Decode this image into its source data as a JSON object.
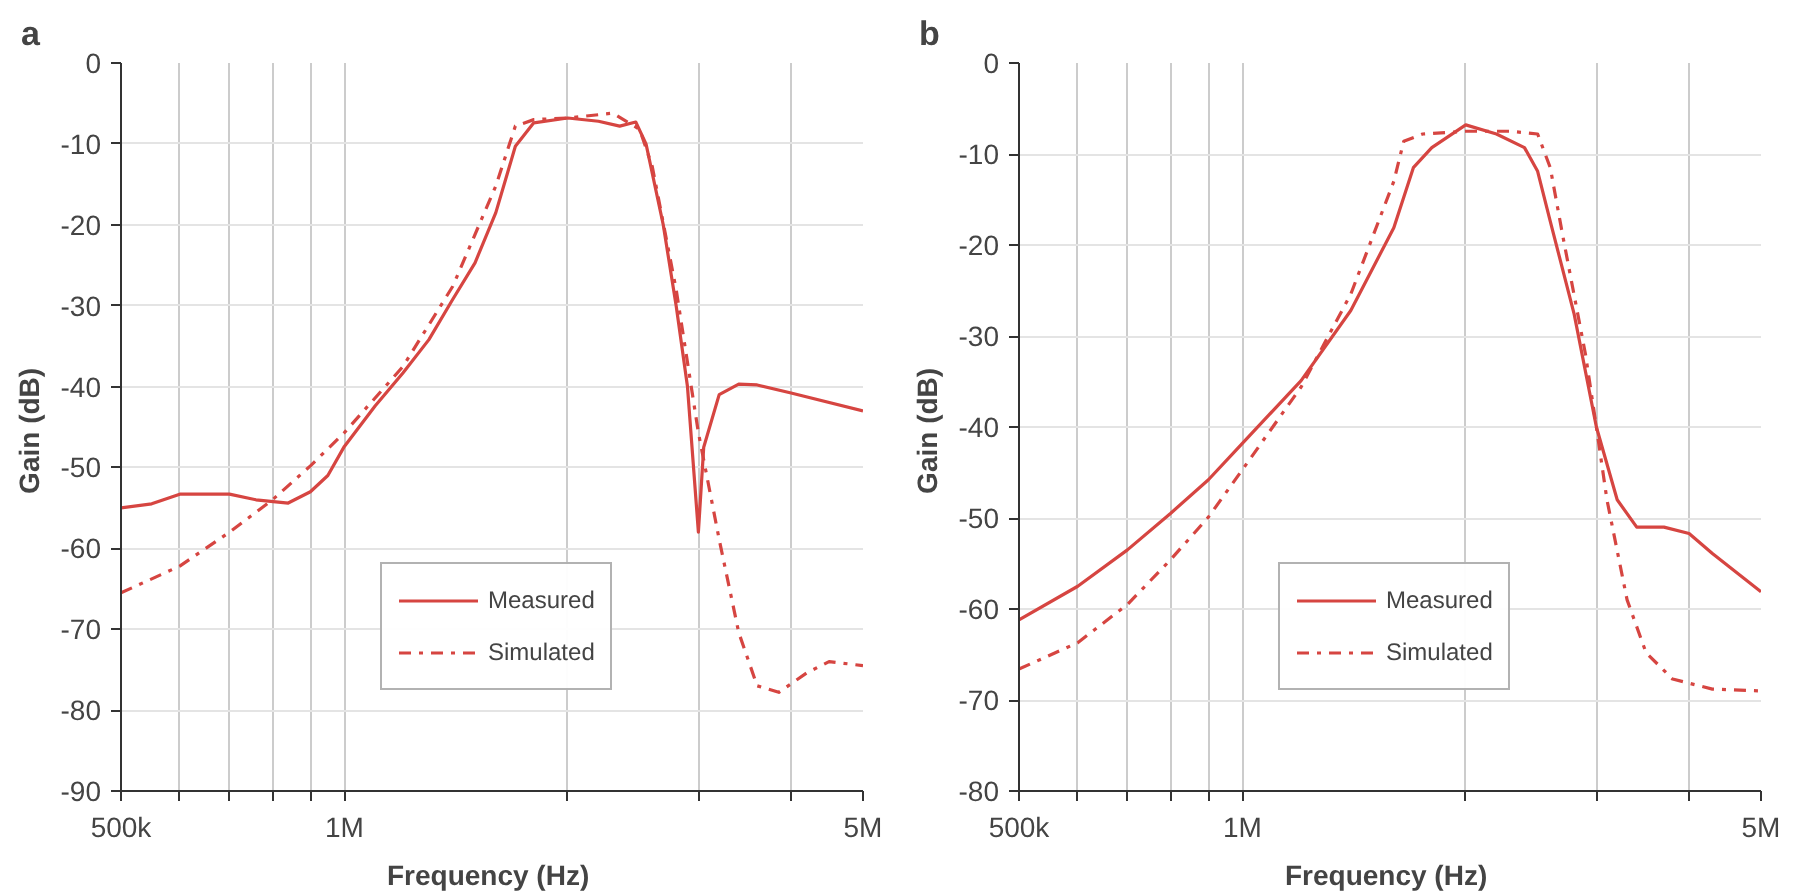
{
  "chart_data": [
    {
      "type": "line",
      "title": "a",
      "xlabel": "Frequency  (Hz)",
      "ylabel": "Gain  (dB)",
      "log": "x",
      "grid": true,
      "legend": "bottom",
      "xlim": [
        500000,
        5000000
      ],
      "ylim": [
        -90,
        0
      ],
      "xticks": [
        {
          "value": 500000,
          "label": "500k"
        },
        {
          "value": 600000,
          "label": null
        },
        {
          "value": 700000,
          "label": null
        },
        {
          "value": 800000,
          "label": null
        },
        {
          "value": 900000,
          "label": null
        },
        {
          "value": 1000000,
          "label": "1M"
        },
        {
          "value": 2000000,
          "label": null
        },
        {
          "value": 3000000,
          "label": null
        },
        {
          "value": 4000000,
          "label": null
        },
        {
          "value": 5000000,
          "label": "5M"
        }
      ],
      "yticks": [
        -90,
        -80,
        -70,
        -60,
        -50,
        -40,
        -30,
        -20,
        -10,
        0
      ],
      "series": [
        {
          "name": "Measured",
          "color": "#d64541",
          "line_style": "solid",
          "x": [
            500000,
            550000,
            600000,
            700000,
            760000,
            840000,
            900000,
            950000,
            1000000,
            1100000,
            1200000,
            1300000,
            1400000,
            1500000,
            1600000,
            1700000,
            1800000,
            2000000,
            2200000,
            2350000,
            2470000,
            2550000,
            2690000,
            2800000,
            2900000,
            3000000,
            3050000,
            3200000,
            3400000,
            3600000,
            4000000,
            5000000
          ],
          "values": [
            -55,
            -54.5,
            -53.3,
            -53.3,
            -54,
            -54.4,
            -53,
            -51,
            -47.4,
            -42.4,
            -38.3,
            -34.2,
            -29.2,
            -24.7,
            -18.5,
            -10.3,
            -7.4,
            -6.8,
            -7.2,
            -7.8,
            -7.3,
            -10,
            -20,
            -30,
            -40,
            -58,
            -47.5,
            -41,
            -39.7,
            -39.8,
            -40.8,
            -43
          ]
        },
        {
          "name": "Simulated",
          "color": "#d64541",
          "line_style": "dashdot",
          "x": [
            500000,
            600000,
            700000,
            800000,
            900000,
            1000000,
            1200000,
            1400000,
            1600000,
            1700000,
            1800000,
            2000000,
            2300000,
            2500000,
            2600000,
            2800000,
            3000000,
            3200000,
            3400000,
            3600000,
            3850000,
            4200000,
            4500000,
            5000000
          ],
          "values": [
            -65.5,
            -62.2,
            -58,
            -54,
            -49.8,
            -45.7,
            -37.5,
            -27.6,
            -15.2,
            -7.8,
            -7,
            -6.8,
            -6.2,
            -8.2,
            -12.8,
            -28,
            -45.7,
            -58.9,
            -70.4,
            -77,
            -77.8,
            -75.4,
            -74,
            -74.5
          ]
        }
      ]
    },
    {
      "type": "line",
      "title": "b",
      "xlabel": "Frequency  (Hz)",
      "ylabel": "Gain  (dB)",
      "log": "x",
      "grid": true,
      "legend": "bottom",
      "xlim": [
        500000,
        5000000
      ],
      "ylim": [
        -80,
        0
      ],
      "xticks": [
        {
          "value": 500000,
          "label": "500k"
        },
        {
          "value": 600000,
          "label": null
        },
        {
          "value": 700000,
          "label": null
        },
        {
          "value": 800000,
          "label": null
        },
        {
          "value": 900000,
          "label": null
        },
        {
          "value": 1000000,
          "label": "1M"
        },
        {
          "value": 2000000,
          "label": null
        },
        {
          "value": 3000000,
          "label": null
        },
        {
          "value": 4000000,
          "label": null
        },
        {
          "value": 5000000,
          "label": "5M"
        }
      ],
      "yticks": [
        -80,
        -70,
        -60,
        -50,
        -40,
        -30,
        -20,
        -10,
        0
      ],
      "series": [
        {
          "name": "Measured",
          "color": "#d64541",
          "line_style": "solid",
          "x": [
            500000,
            600000,
            700000,
            800000,
            900000,
            1000000,
            1200000,
            1400000,
            1600000,
            1700000,
            1800000,
            2000000,
            2200000,
            2400000,
            2500000,
            2600000,
            2800000,
            3000000,
            3200000,
            3400000,
            3700000,
            4000000,
            4300000,
            5000000
          ],
          "values": [
            -61.2,
            -57.5,
            -53.5,
            -49.5,
            -45.8,
            -41.8,
            -34.9,
            -27.2,
            -18.1,
            -11.5,
            -9.3,
            -6.8,
            -7.8,
            -9.3,
            -11.9,
            -17.4,
            -27.6,
            -40,
            -48,
            -51,
            -51,
            -51.7,
            -53.9,
            -58.1
          ]
        },
        {
          "name": "Simulated",
          "color": "#d64541",
          "line_style": "dashdot",
          "x": [
            500000,
            600000,
            700000,
            800000,
            900000,
            1000000,
            1200000,
            1400000,
            1600000,
            1650000,
            1750000,
            2000000,
            2300000,
            2500000,
            2600000,
            2700000,
            2900000,
            3000000,
            3100000,
            3300000,
            3500000,
            3800000,
            4300000,
            5000000
          ],
          "values": [
            -66.6,
            -63.7,
            -59.5,
            -54.6,
            -49.9,
            -44.7,
            -35.6,
            -25.4,
            -13,
            -8.6,
            -7.8,
            -7.5,
            -7.5,
            -7.8,
            -11.5,
            -18.8,
            -32,
            -40,
            -48,
            -59,
            -64.8,
            -67.7,
            -68.8,
            -69
          ]
        }
      ]
    }
  ]
}
